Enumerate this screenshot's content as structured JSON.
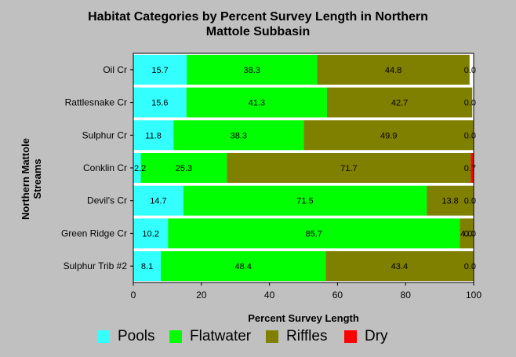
{
  "chart_data": {
    "type": "bar",
    "orientation": "horizontal",
    "stacked": true,
    "title_lines": [
      "Habitat Categories by Percent Survey Length in Northern",
      "Mattole Subbasin"
    ],
    "xlabel": "Percent Survey Length",
    "ylabel_lines": [
      "Northern Mattole",
      "Streams"
    ],
    "xlim": [
      0,
      100
    ],
    "xticks": [
      "0",
      "20",
      "40",
      "60",
      "80",
      "100"
    ],
    "grid": false,
    "legend_position": "bottom",
    "categories": [
      "Oil Cr",
      "Rattlesnake Cr",
      "Sulphur Cr",
      "Conklin Cr",
      "Devil's Cr",
      "Green Ridge Cr",
      "Sulphur Trib #2"
    ],
    "series": [
      {
        "name": "Pools",
        "color": "#33ffff",
        "values": [
          15.7,
          15.6,
          11.8,
          2.2,
          14.7,
          10.2,
          8.1
        ],
        "labels": [
          "15.7",
          "15.6",
          "11.8",
          "2.2",
          "14.7",
          "10.2",
          "8.1"
        ]
      },
      {
        "name": "Flatwater",
        "color": "#00ff00",
        "values": [
          38.3,
          41.3,
          38.3,
          25.3,
          71.5,
          85.7,
          48.4
        ],
        "labels": [
          "38.3",
          "41.3",
          "38.3",
          "25.3",
          "71.5",
          "85.7",
          "48.4"
        ]
      },
      {
        "name": "Riffles",
        "color": "#808000",
        "values": [
          44.8,
          42.7,
          49.9,
          71.7,
          13.8,
          4.0,
          43.4
        ],
        "labels": [
          "44.8",
          "42.7",
          "49.9",
          "71.7",
          "13.8",
          "4.0",
          "43.4"
        ]
      },
      {
        "name": "Dry",
        "color": "#ff0000",
        "values": [
          0.0,
          0.0,
          0.0,
          0.7,
          0.0,
          0.0,
          0.0
        ],
        "labels": [
          "0.0",
          "0.0",
          "0.0",
          "0.7",
          "0.0",
          "0.0",
          "0.0"
        ]
      }
    ]
  }
}
